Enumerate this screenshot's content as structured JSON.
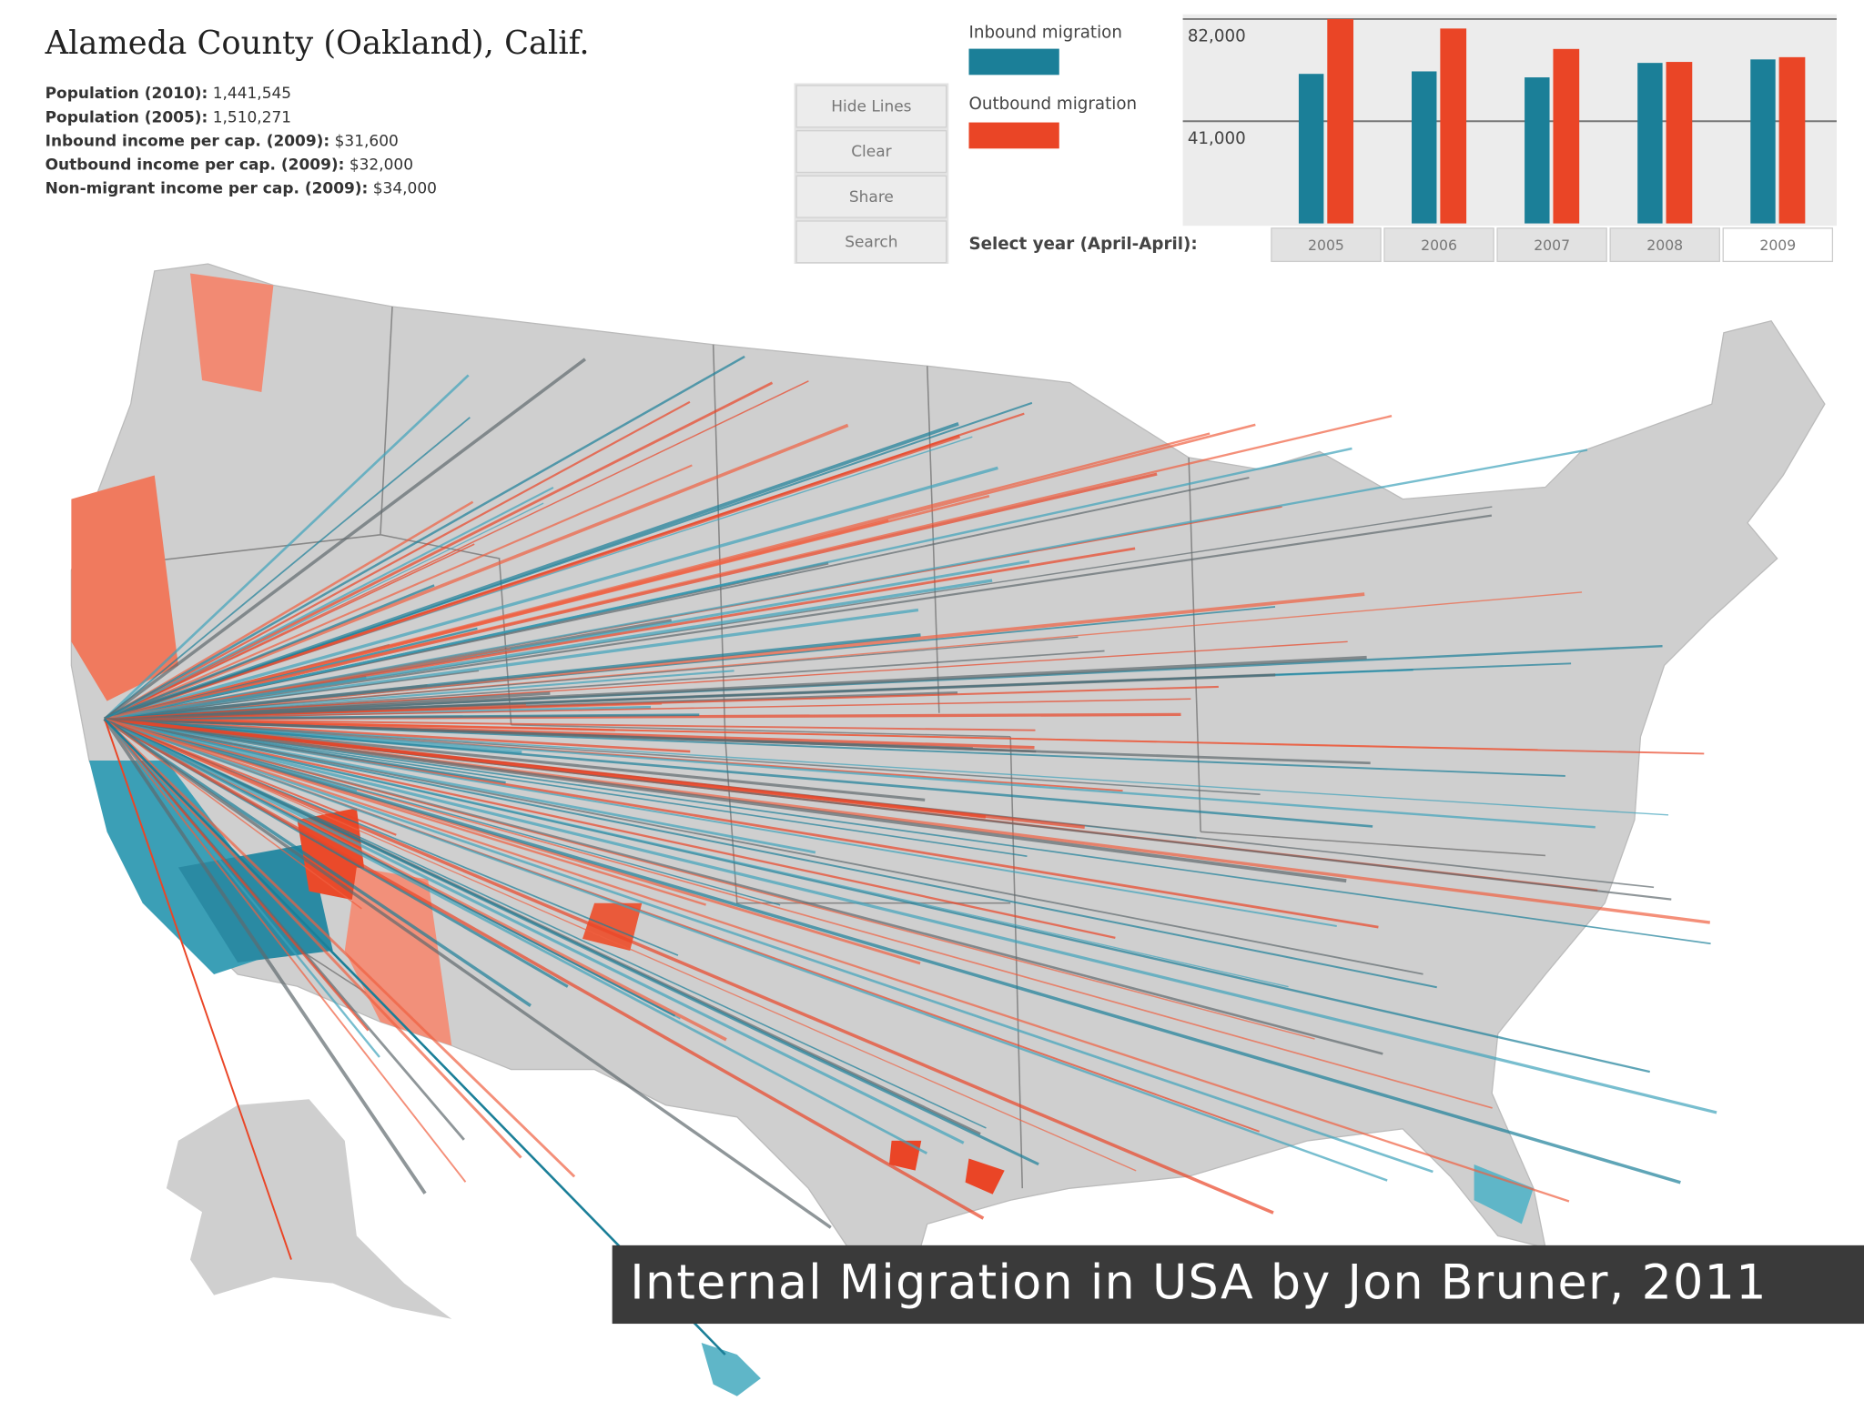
{
  "header": {
    "title": "Alameda County (Oakland), Calif.",
    "stats": [
      {
        "label": "Population (2010):",
        "value": "1,441,545"
      },
      {
        "label": "Population (2005):",
        "value": "1,510,271"
      },
      {
        "label": "Inbound income per cap. (2009):",
        "value": "$31,600"
      },
      {
        "label": "Outbound income per cap. (2009):",
        "value": "$32,000"
      },
      {
        "label": "Non-migrant income per cap. (2009):",
        "value": "$34,000"
      }
    ]
  },
  "buttons": [
    "Hide Lines",
    "Clear",
    "Share",
    "Search"
  ],
  "chart_data": {
    "type": "bar",
    "x_label": "Select year (April-April):",
    "categories": [
      "2005",
      "2006",
      "2007",
      "2008",
      "2009"
    ],
    "series": [
      {
        "name": "Inbound migration",
        "color": "#1b7f98",
        "values": [
          60000,
          61000,
          58600,
          64400,
          65800
        ]
      },
      {
        "name": "Outbound migration",
        "color": "#ea4526",
        "values": [
          82000,
          78200,
          70000,
          64800,
          66700
        ]
      }
    ],
    "ylim": [
      0,
      82000
    ],
    "yticks": [
      {
        "value": 41000,
        "label": "41,000"
      },
      {
        "value": 82000,
        "label": "82,000"
      }
    ],
    "grid": true
  },
  "caption": "Internal Migration in USA by Jon Bruner, 2011"
}
